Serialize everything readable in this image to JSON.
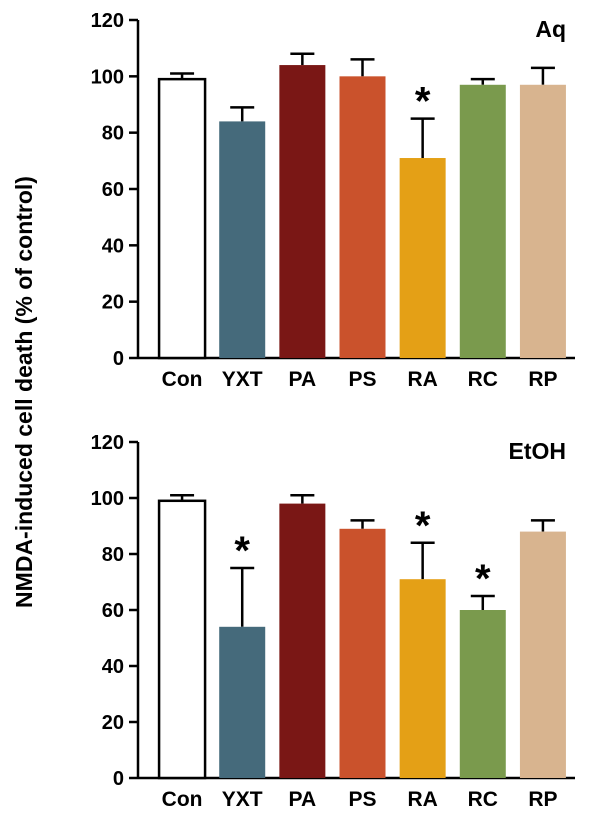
{
  "ylabel": "NMDA-induced cell death (% of control)",
  "chart_data": [
    {
      "type": "bar",
      "panel_label": "Aq",
      "categories": [
        "Con",
        "YXT",
        "PA",
        "PS",
        "RA",
        "RC",
        "RP"
      ],
      "values": [
        99,
        84,
        104,
        100,
        71,
        97,
        97
      ],
      "errors": [
        2,
        5,
        4,
        6,
        14,
        2,
        6
      ],
      "significant": [
        false,
        false,
        false,
        false,
        true,
        false,
        false
      ],
      "significance_marker": "*",
      "colors": [
        "#ffffff",
        "#456a7b",
        "#7a1715",
        "#ca522c",
        "#e4a016",
        "#7a9a4d",
        "#d8b48f"
      ],
      "ylim": [
        0,
        120
      ],
      "yticks": [
        0,
        20,
        40,
        60,
        80,
        100,
        120
      ],
      "grid": false
    },
    {
      "type": "bar",
      "panel_label": "EtOH",
      "categories": [
        "Con",
        "YXT",
        "PA",
        "PS",
        "RA",
        "RC",
        "RP"
      ],
      "values": [
        99,
        54,
        98,
        89,
        71,
        60,
        88
      ],
      "errors": [
        2,
        21,
        3,
        3,
        13,
        5,
        4
      ],
      "significant": [
        false,
        true,
        false,
        false,
        true,
        true,
        false
      ],
      "significance_marker": "*",
      "colors": [
        "#ffffff",
        "#456a7b",
        "#7a1715",
        "#ca522c",
        "#e4a016",
        "#7a9a4d",
        "#d8b48f"
      ],
      "ylim": [
        0,
        120
      ],
      "yticks": [
        0,
        20,
        40,
        60,
        80,
        100,
        120
      ],
      "grid": false
    }
  ]
}
